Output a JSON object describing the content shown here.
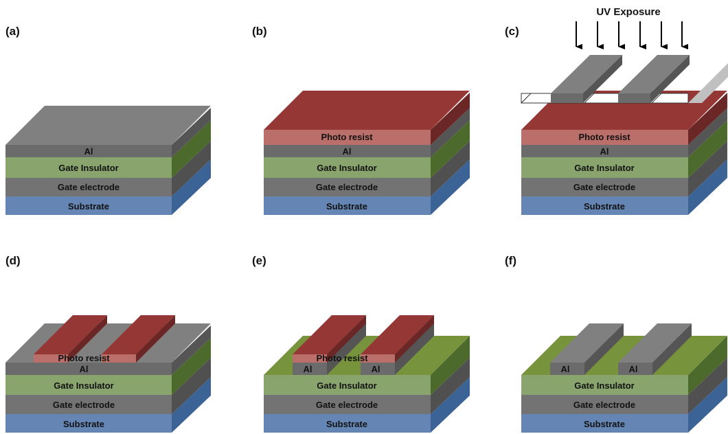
{
  "colors": {
    "substrate": "#6586b4",
    "gate_electrode": "#737373",
    "gate_insulator": "#8aa46e",
    "al": "#6b6b6b",
    "photo_resist": "#ba6f6b",
    "resist_top": "#953735",
    "al_top": "#808080",
    "insulator_top": "#77933c"
  },
  "panels": [
    {
      "id": "a",
      "label": "(a)"
    },
    {
      "id": "b",
      "label": "(b)"
    },
    {
      "id": "c",
      "label": "(c)"
    },
    {
      "id": "d",
      "label": "(d)"
    },
    {
      "id": "e",
      "label": "(e)"
    },
    {
      "id": "f",
      "label": "(f)"
    }
  ],
  "layers": {
    "substrate": "Substrate",
    "gate_electrode": "Gate electrode",
    "gate_insulator": "Gate Insulator",
    "al": "Al",
    "photo_resist": "Photo resist"
  },
  "uv_exposure": "UV Exposure"
}
